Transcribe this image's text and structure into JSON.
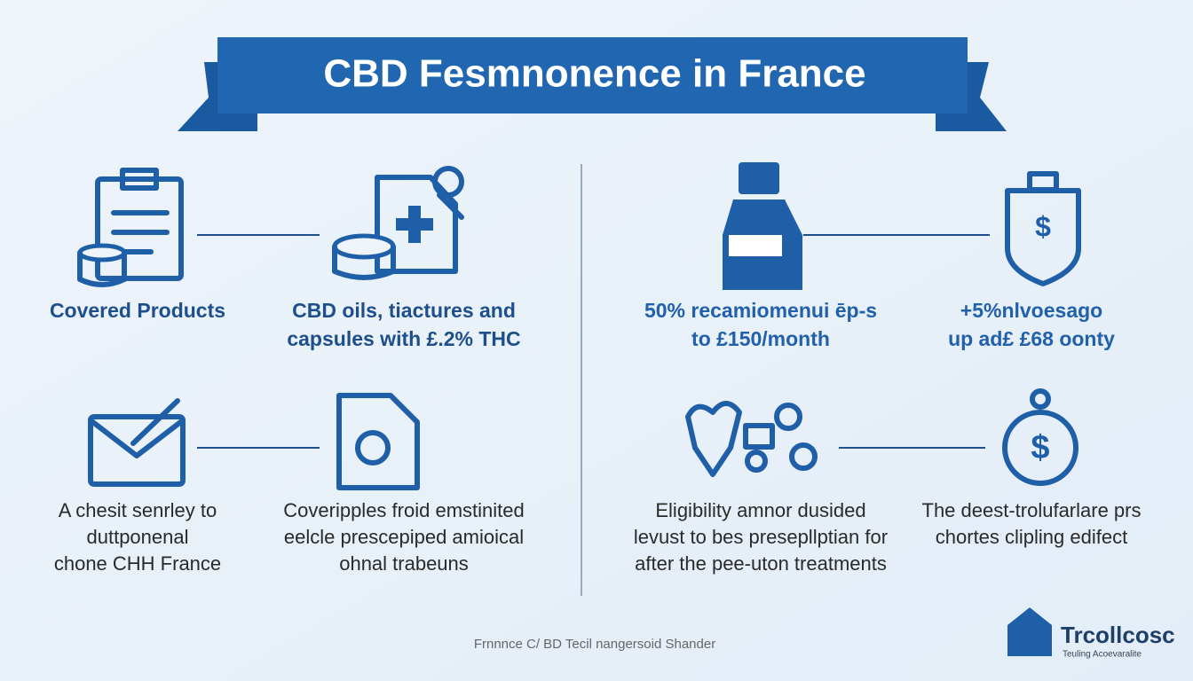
{
  "title": "CBD Fesmnonence in France",
  "items": [
    {
      "lines": [
        "Covered Products"
      ]
    },
    {
      "lines": [
        "CBD oils, tiactures and",
        "capsules with £.2% THC"
      ]
    },
    {
      "lines": [
        "50% recamiomenuі ēp-s",
        "to £150/month"
      ]
    },
    {
      "lines": [
        "+5%nlvoesago",
        "up ad£ £68 oonty"
      ]
    },
    {
      "lines": [
        "A chesit senrley to",
        "duttponenal",
        "chone CHH France"
      ]
    },
    {
      "lines": [
        "Coveripples froid emstinited",
        "eelcle prescepiped amioical",
        "ohnal trabeuns"
      ]
    },
    {
      "lines": [
        "Eligibility amnor dusided",
        "levust to bes presepllptian for",
        "after the pee-uton treatments"
      ]
    },
    {
      "lines": [
        "The deest-trolufarlare prs",
        "chortes clipling edifect"
      ]
    }
  ],
  "footer": "Frnnnce C/ BD Tecil nangersoid Shander",
  "logo": {
    "name": "Trcollcosc",
    "tagline": "Teuling Acoevaralite"
  }
}
